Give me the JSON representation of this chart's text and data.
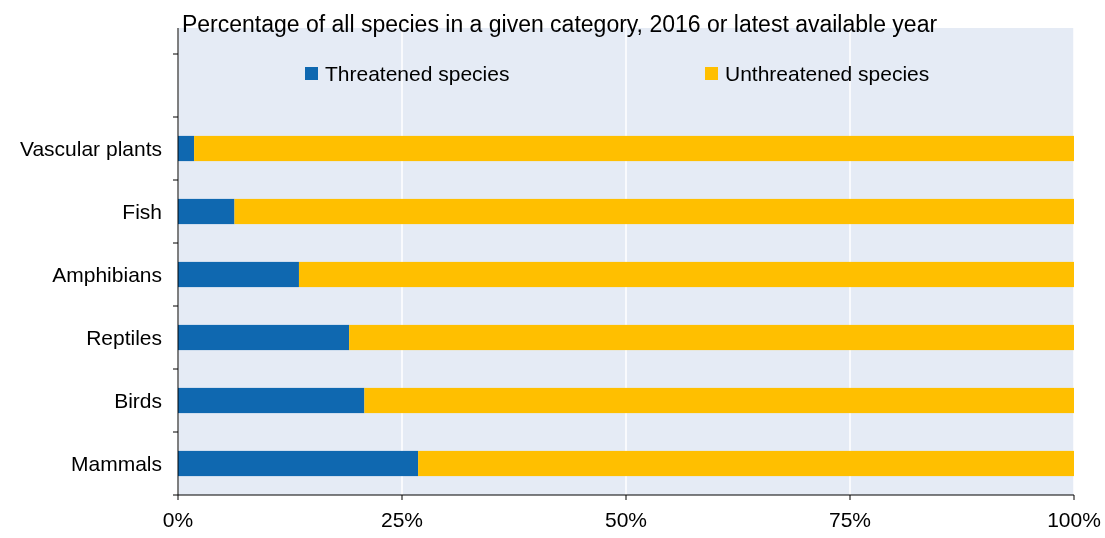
{
  "chart_data": {
    "type": "bar",
    "orientation": "horizontal",
    "stacked": true,
    "title": "Percentage of all species in a given category, 2016 or latest available year",
    "categories": [
      "Vascular plants",
      "Fish",
      "Amphibians",
      "Reptiles",
      "Birds",
      "Mammals"
    ],
    "series": [
      {
        "name": "Threatened species",
        "color": "#0f68b0",
        "values": [
          1.8,
          6.3,
          13.5,
          19.1,
          20.8,
          26.8
        ]
      },
      {
        "name": "Unthreatened species",
        "color": "#ffbf00",
        "values": [
          98.2,
          93.7,
          86.5,
          80.9,
          79.2,
          73.2
        ]
      }
    ],
    "xlim": [
      0,
      100
    ],
    "xticks": [
      {
        "value": 0,
        "label": "0%"
      },
      {
        "value": 25,
        "label": "25%"
      },
      {
        "value": 50,
        "label": "50%"
      },
      {
        "value": 75,
        "label": "75%"
      },
      {
        "value": 100,
        "label": "100%"
      }
    ],
    "grid": "x",
    "legend": "top"
  }
}
